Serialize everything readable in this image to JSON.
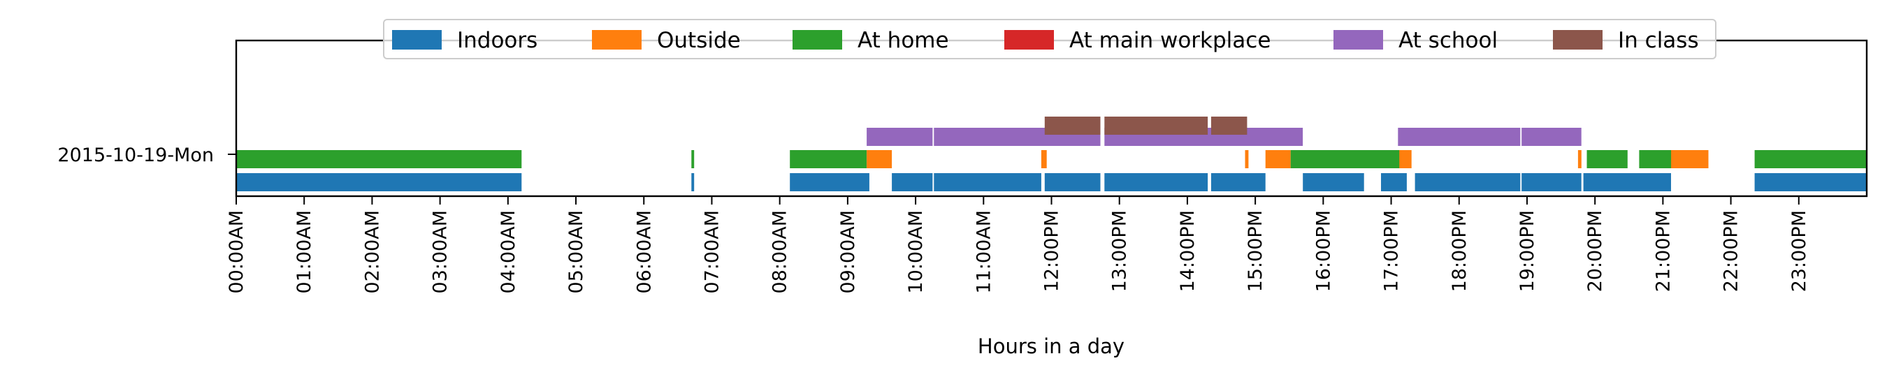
{
  "chart_data": {
    "type": "timeline",
    "xlabel": "Hours in a day",
    "xlim": [
      0,
      24
    ],
    "row_label": "2015-10-19-Mon",
    "x_tick_values": [
      0,
      1,
      2,
      3,
      4,
      5,
      6,
      7,
      8,
      9,
      10,
      11,
      12,
      13,
      14,
      15,
      16,
      17,
      18,
      19,
      20,
      21,
      22,
      23
    ],
    "x_tick_labels": [
      "00:00AM",
      "01:00AM",
      "02:00AM",
      "03:00AM",
      "04:00AM",
      "05:00AM",
      "06:00AM",
      "07:00AM",
      "08:00AM",
      "09:00AM",
      "10:00AM",
      "11:00AM",
      "12:00PM",
      "13:00PM",
      "14:00PM",
      "15:00PM",
      "16:00PM",
      "17:00PM",
      "18:00PM",
      "19:00PM",
      "20:00PM",
      "21:00PM",
      "22:00PM",
      "23:00PM"
    ],
    "legend_position": "top-center",
    "series": [
      {
        "name": "Indoors",
        "color": "#1f77b4",
        "lane": 0,
        "intervals": [
          [
            0,
            4.2
          ],
          [
            6.7,
            6.74
          ],
          [
            8.15,
            9.32
          ],
          [
            9.65,
            10.25
          ],
          [
            10.27,
            11.85
          ],
          [
            11.9,
            12.72
          ],
          [
            12.78,
            14.3
          ],
          [
            14.35,
            15.15
          ],
          [
            15.7,
            16.6
          ],
          [
            16.85,
            17.23
          ],
          [
            17.35,
            18.9
          ],
          [
            18.92,
            19.8
          ],
          [
            19.83,
            21.12
          ],
          [
            22.35,
            24
          ]
        ]
      },
      {
        "name": "Outside",
        "color": "#ff7f0e",
        "lane": 1,
        "intervals": [
          [
            9.28,
            9.65
          ],
          [
            11.85,
            11.93
          ],
          [
            14.85,
            14.9
          ],
          [
            15.15,
            15.52
          ],
          [
            15.62,
            15.67
          ],
          [
            17.1,
            17.3
          ],
          [
            19.75,
            19.8
          ],
          [
            21.12,
            21.67
          ]
        ]
      },
      {
        "name": "At home",
        "color": "#2ca02c",
        "lane": 1,
        "intervals": [
          [
            0,
            4.2
          ],
          [
            6.7,
            6.74
          ],
          [
            8.15,
            9.28
          ],
          [
            15.52,
            17.12
          ],
          [
            19.88,
            20.48
          ],
          [
            20.65,
            21.12
          ],
          [
            22.35,
            24
          ]
        ]
      },
      {
        "name": "At main workplace",
        "color": "#d62728",
        "lane": 2,
        "intervals": []
      },
      {
        "name": "At school",
        "color": "#9467bd",
        "lane": 2,
        "intervals": [
          [
            9.28,
            10.25
          ],
          [
            10.27,
            12.72
          ],
          [
            12.78,
            15.7
          ],
          [
            17.1,
            18.9
          ],
          [
            18.92,
            19.8
          ]
        ]
      },
      {
        "name": "In class",
        "color": "#8c564b",
        "lane": 3,
        "intervals": [
          [
            11.9,
            12.72
          ],
          [
            12.78,
            14.3
          ],
          [
            14.35,
            14.88
          ]
        ]
      }
    ]
  }
}
